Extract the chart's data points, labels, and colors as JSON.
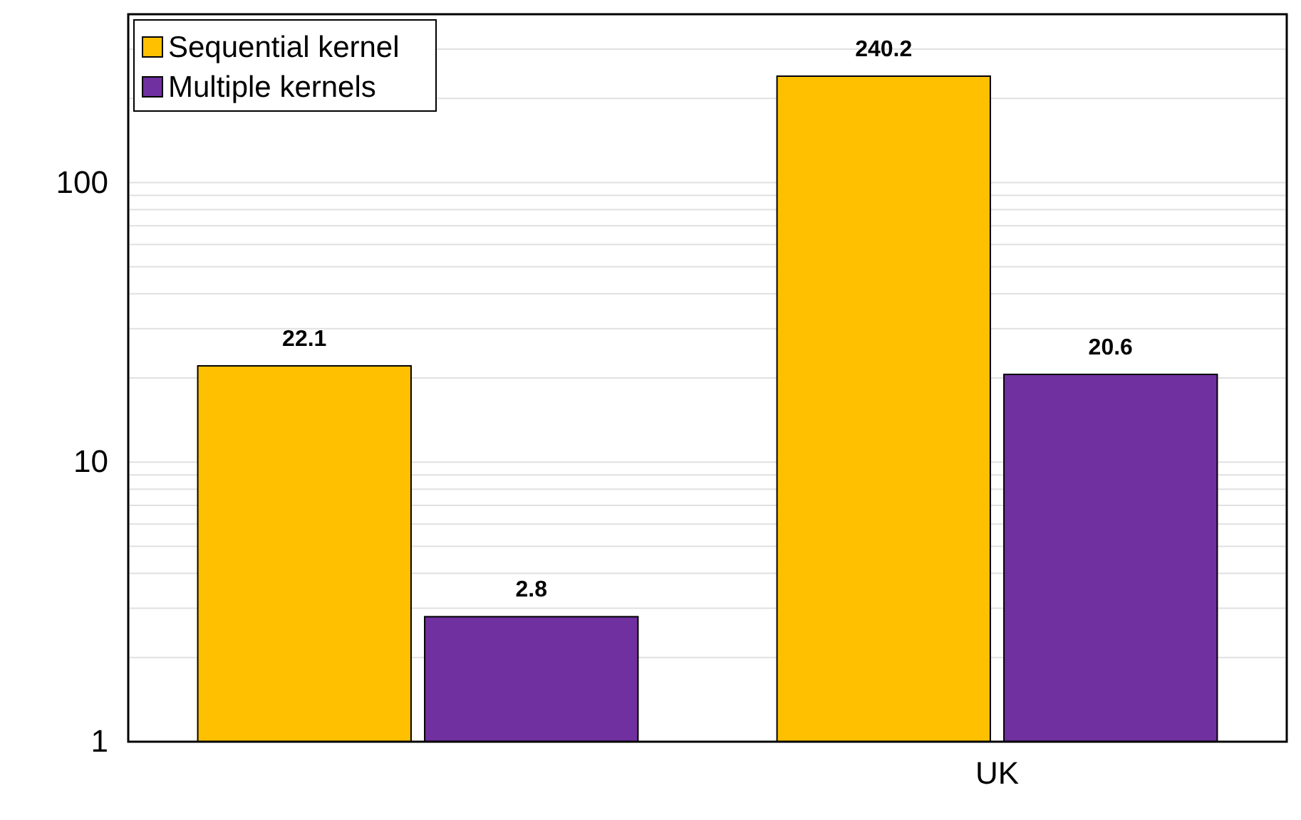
{
  "chart_data": {
    "type": "bar",
    "categories": [
      null,
      "UK"
    ],
    "series": [
      {
        "name": "Sequential kernel",
        "color": "#ffc000",
        "values": [
          22.1,
          240.2
        ]
      },
      {
        "name": "Multiple kernels",
        "color": "#7030a0",
        "values": [
          2.8,
          20.6
        ]
      }
    ],
    "log": true,
    "ylim": [
      1,
      400
    ],
    "yticks": [
      1,
      {
        "value": 2,
        "label": null
      },
      {
        "value": 3,
        "label": null
      },
      {
        "value": 4,
        "label": null
      },
      {
        "value": 5,
        "label": null
      },
      {
        "value": 6,
        "label": null
      },
      {
        "value": 7,
        "label": null
      },
      {
        "value": 8,
        "label": null
      },
      {
        "value": 9,
        "label": null
      },
      10,
      {
        "value": 20,
        "label": null
      },
      {
        "value": 30,
        "label": null
      },
      {
        "value": 40,
        "label": null
      },
      {
        "value": 50,
        "label": null
      },
      {
        "value": 60,
        "label": null
      },
      {
        "value": 70,
        "label": null
      },
      {
        "value": 80,
        "label": null
      },
      {
        "value": 90,
        "label": null
      },
      100,
      {
        "value": 200,
        "label": null
      },
      {
        "value": 300,
        "label": null
      },
      {
        "value": 400,
        "label": null
      }
    ],
    "grid": "y",
    "legend": "top left",
    "data_labels": true
  }
}
